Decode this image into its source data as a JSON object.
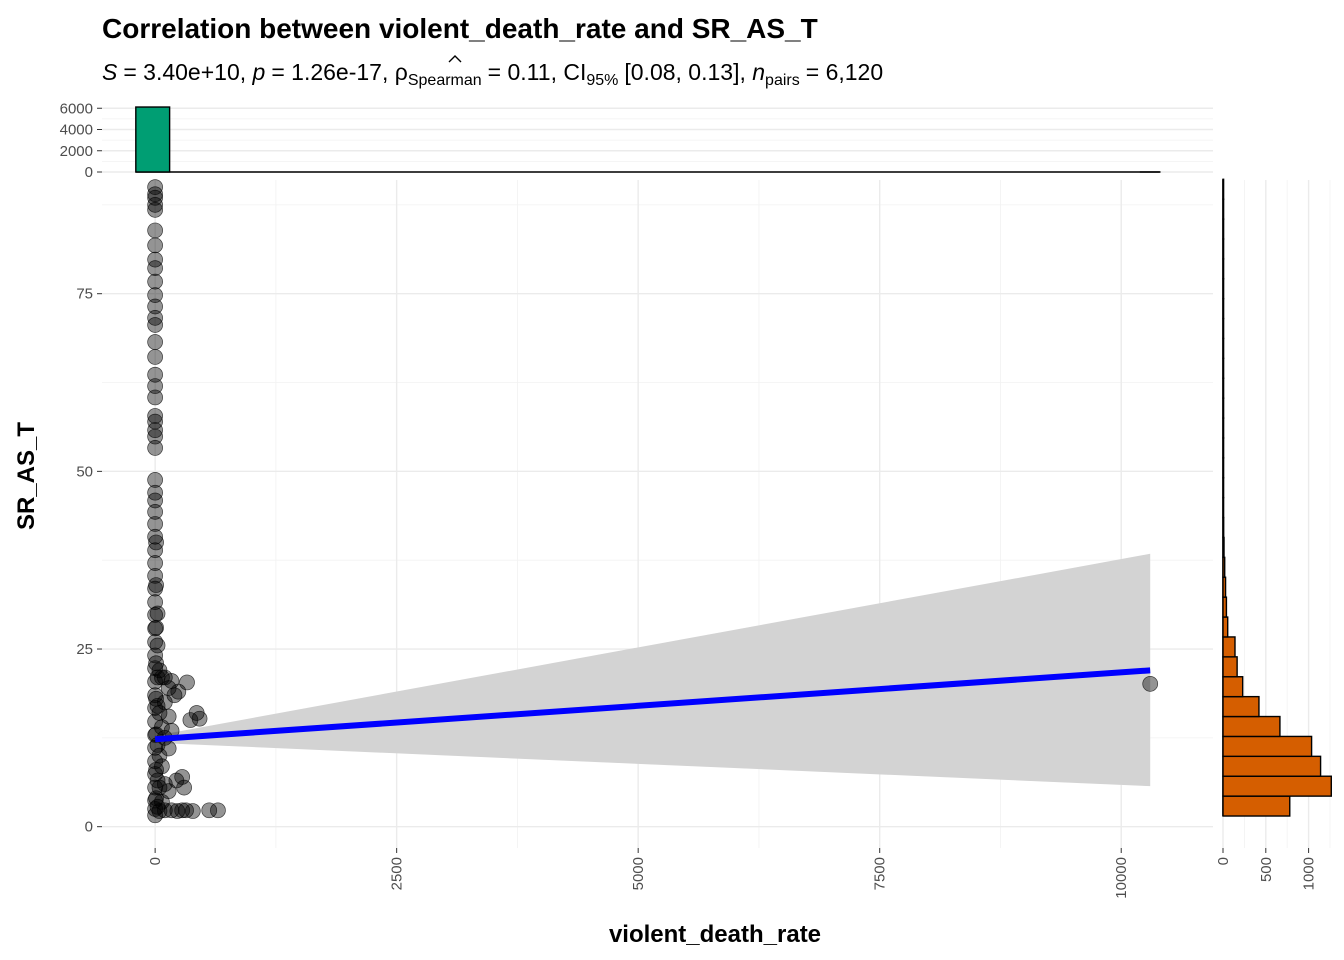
{
  "chart_data": {
    "type": "scatter",
    "title": "Correlation between violent_death_rate and SR_AS_T",
    "subtitle": {
      "statistic_symbol": "S",
      "statistic_value": "3.40e+10",
      "p_symbol": "p",
      "p_value": "1.26e-17",
      "rho_symbol": "ρ",
      "rho_subscript": "Spearman",
      "rho_value": "0.11",
      "ci_label": "CI",
      "ci_subscript": "95%",
      "ci_value": "[0.08, 0.13]",
      "n_symbol": "n",
      "n_subscript": "pairs",
      "n_value": "6,120"
    },
    "xlabel": "violent_death_rate",
    "ylabel": "SR_AS_T",
    "xlim": [
      -550,
      10950
    ],
    "ylim": [
      -3,
      91
    ],
    "x_ticks": [
      0,
      2500,
      5000,
      7500,
      10000
    ],
    "x_tick_labels": [
      "0",
      "2500",
      "5000",
      "7500",
      "10000"
    ],
    "y_ticks": [
      0,
      25,
      50,
      75
    ],
    "y_tick_labels": [
      "0",
      "25",
      "50",
      "75"
    ],
    "grid": true,
    "scatter_color": "#000000",
    "points": [
      {
        "x": 0,
        "y": 90.0
      },
      {
        "x": 0,
        "y": 89.0
      },
      {
        "x": 0,
        "y": 88.5
      },
      {
        "x": 0,
        "y": 87.5
      },
      {
        "x": 0,
        "y": 86.8
      },
      {
        "x": 0,
        "y": 83.9
      },
      {
        "x": 0,
        "y": 81.8
      },
      {
        "x": 0,
        "y": 79.8
      },
      {
        "x": 0,
        "y": 78.6
      },
      {
        "x": 0,
        "y": 76.7
      },
      {
        "x": 0,
        "y": 74.8
      },
      {
        "x": 0,
        "y": 73.2
      },
      {
        "x": 0,
        "y": 71.6
      },
      {
        "x": 0,
        "y": 70.6
      },
      {
        "x": 0,
        "y": 68.2
      },
      {
        "x": 0,
        "y": 66.1
      },
      {
        "x": 0,
        "y": 63.6
      },
      {
        "x": 0,
        "y": 62.0
      },
      {
        "x": 0,
        "y": 60.4
      },
      {
        "x": 0,
        "y": 57.8
      },
      {
        "x": 0,
        "y": 57.0
      },
      {
        "x": 0,
        "y": 55.8
      },
      {
        "x": 0,
        "y": 54.9
      },
      {
        "x": 0,
        "y": 53.3
      },
      {
        "x": 0,
        "y": 48.8
      },
      {
        "x": 0,
        "y": 47.0
      },
      {
        "x": 0,
        "y": 45.9
      },
      {
        "x": 0,
        "y": 44.3
      },
      {
        "x": 0,
        "y": 42.6
      },
      {
        "x": 0,
        "y": 40.8
      },
      {
        "x": 0,
        "y": 38.9
      },
      {
        "x": 0,
        "y": 37.1
      },
      {
        "x": 0,
        "y": 35.3
      },
      {
        "x": 0,
        "y": 33.5
      },
      {
        "x": 0,
        "y": 31.6
      },
      {
        "x": 0,
        "y": 29.8
      },
      {
        "x": 0,
        "y": 27.9
      },
      {
        "x": 0,
        "y": 26.0
      },
      {
        "x": 0,
        "y": 24.1
      },
      {
        "x": 0,
        "y": 22.3
      },
      {
        "x": 0,
        "y": 20.4
      },
      {
        "x": 0,
        "y": 18.5
      },
      {
        "x": 0,
        "y": 16.7
      },
      {
        "x": 0,
        "y": 14.8
      },
      {
        "x": 0,
        "y": 12.9
      },
      {
        "x": 0,
        "y": 11.1
      },
      {
        "x": 0,
        "y": 9.2
      },
      {
        "x": 0,
        "y": 7.4
      },
      {
        "x": 0,
        "y": 5.5
      },
      {
        "x": 0,
        "y": 3.7
      },
      {
        "x": 0,
        "y": 2.5
      },
      {
        "x": 0,
        "y": 1.6
      },
      {
        "x": 10,
        "y": 40.0
      },
      {
        "x": 10,
        "y": 34.0
      },
      {
        "x": 10,
        "y": 28.0
      },
      {
        "x": 10,
        "y": 23.0
      },
      {
        "x": 10,
        "y": 18.0
      },
      {
        "x": 10,
        "y": 13.0
      },
      {
        "x": 10,
        "y": 8.0
      },
      {
        "x": 10,
        "y": 4.0
      },
      {
        "x": 25,
        "y": 30.0
      },
      {
        "x": 25,
        "y": 25.5
      },
      {
        "x": 25,
        "y": 21.0
      },
      {
        "x": 25,
        "y": 17.0
      },
      {
        "x": 25,
        "y": 11.5
      },
      {
        "x": 25,
        "y": 6.5
      },
      {
        "x": 25,
        "y": 2.8
      },
      {
        "x": 45,
        "y": 22.0
      },
      {
        "x": 45,
        "y": 16.0
      },
      {
        "x": 45,
        "y": 10.0
      },
      {
        "x": 45,
        "y": 5.5
      },
      {
        "x": 45,
        "y": 2.2
      },
      {
        "x": 70,
        "y": 21.0
      },
      {
        "x": 70,
        "y": 14.0
      },
      {
        "x": 70,
        "y": 8.5
      },
      {
        "x": 70,
        "y": 3.5
      },
      {
        "x": 100,
        "y": 21.0
      },
      {
        "x": 100,
        "y": 17.5
      },
      {
        "x": 100,
        "y": 12.5
      },
      {
        "x": 100,
        "y": 6.0
      },
      {
        "x": 100,
        "y": 2.3
      },
      {
        "x": 140,
        "y": 19.5
      },
      {
        "x": 140,
        "y": 15.5
      },
      {
        "x": 140,
        "y": 11.0
      },
      {
        "x": 140,
        "y": 5.0
      },
      {
        "x": 170,
        "y": 20.5
      },
      {
        "x": 170,
        "y": 13.5
      },
      {
        "x": 170,
        "y": 2.3
      },
      {
        "x": 200,
        "y": 18.5
      },
      {
        "x": 220,
        "y": 6.5
      },
      {
        "x": 230,
        "y": 2.2
      },
      {
        "x": 240,
        "y": 19.0
      },
      {
        "x": 280,
        "y": 7.0
      },
      {
        "x": 300,
        "y": 5.5
      },
      {
        "x": 330,
        "y": 20.3
      },
      {
        "x": 320,
        "y": 2.3
      },
      {
        "x": 280,
        "y": 2.3
      },
      {
        "x": 365,
        "y": 15.0
      },
      {
        "x": 430,
        "y": 16.0
      },
      {
        "x": 460,
        "y": 15.2
      },
      {
        "x": 390,
        "y": 2.2
      },
      {
        "x": 560,
        "y": 2.3
      },
      {
        "x": 650,
        "y": 2.3
      },
      {
        "x": 10300,
        "y": 20.1
      }
    ],
    "regression": {
      "color": "#0000ff",
      "x": [
        0,
        10300
      ],
      "y": [
        12.3,
        22.0
      ],
      "ci_band_color": "#d3d3d3",
      "ci_lower": [
        11.8,
        5.7
      ],
      "ci_upper": [
        12.8,
        38.4
      ]
    },
    "top_histogram": {
      "color": "#009e73",
      "ylim": [
        0,
        6400
      ],
      "y_ticks": [
        0,
        2000,
        4000,
        6000
      ],
      "y_tick_labels": [
        "0",
        "2000",
        "4000",
        "6000"
      ],
      "bins": [
        {
          "x0": -200,
          "x1": 150,
          "count": 6115
        },
        {
          "x0": 10200,
          "x1": 10400,
          "count": 1
        }
      ]
    },
    "right_histogram": {
      "color": "#d55e00",
      "xlim": [
        0,
        1250
      ],
      "x_ticks": [
        0,
        500,
        1000
      ],
      "x_tick_labels": [
        "0",
        "500",
        "1000"
      ],
      "bins": [
        {
          "y0": 1.5,
          "y1": 4.3,
          "count": 780
        },
        {
          "y0": 4.3,
          "y1": 7.1,
          "count": 1265
        },
        {
          "y0": 7.1,
          "y1": 9.9,
          "count": 1140
        },
        {
          "y0": 9.9,
          "y1": 12.7,
          "count": 1035
        },
        {
          "y0": 12.7,
          "y1": 15.5,
          "count": 665
        },
        {
          "y0": 15.5,
          "y1": 18.3,
          "count": 420
        },
        {
          "y0": 18.3,
          "y1": 21.1,
          "count": 230
        },
        {
          "y0": 21.1,
          "y1": 23.9,
          "count": 165
        },
        {
          "y0": 23.9,
          "y1": 26.7,
          "count": 140
        },
        {
          "y0": 26.7,
          "y1": 29.5,
          "count": 55
        },
        {
          "y0": 29.5,
          "y1": 32.3,
          "count": 40
        },
        {
          "y0": 32.3,
          "y1": 35.1,
          "count": 30
        },
        {
          "y0": 35.1,
          "y1": 37.9,
          "count": 20
        },
        {
          "y0": 37.9,
          "y1": 40.7,
          "count": 12
        },
        {
          "y0": 40.7,
          "y1": 43.5,
          "count": 8
        },
        {
          "y0": 43.5,
          "y1": 46.3,
          "count": 6
        },
        {
          "y0": 46.3,
          "y1": 49.1,
          "count": 4
        },
        {
          "y0": 49.1,
          "y1": 51.9,
          "count": 2
        },
        {
          "y0": 51.9,
          "y1": 54.7,
          "count": 3
        },
        {
          "y0": 54.7,
          "y1": 57.5,
          "count": 5
        },
        {
          "y0": 57.5,
          "y1": 60.3,
          "count": 3
        },
        {
          "y0": 60.3,
          "y1": 63.1,
          "count": 2
        },
        {
          "y0": 63.1,
          "y1": 65.9,
          "count": 2
        },
        {
          "y0": 65.9,
          "y1": 68.7,
          "count": 2
        },
        {
          "y0": 68.7,
          "y1": 71.5,
          "count": 2
        },
        {
          "y0": 71.5,
          "y1": 74.3,
          "count": 2
        },
        {
          "y0": 74.3,
          "y1": 77.1,
          "count": 3
        },
        {
          "y0": 77.1,
          "y1": 79.9,
          "count": 2
        },
        {
          "y0": 79.9,
          "y1": 82.7,
          "count": 2
        },
        {
          "y0": 82.7,
          "y1": 85.5,
          "count": 2
        },
        {
          "y0": 85.5,
          "y1": 88.3,
          "count": 4
        },
        {
          "y0": 88.3,
          "y1": 91.1,
          "count": 3
        }
      ]
    }
  }
}
